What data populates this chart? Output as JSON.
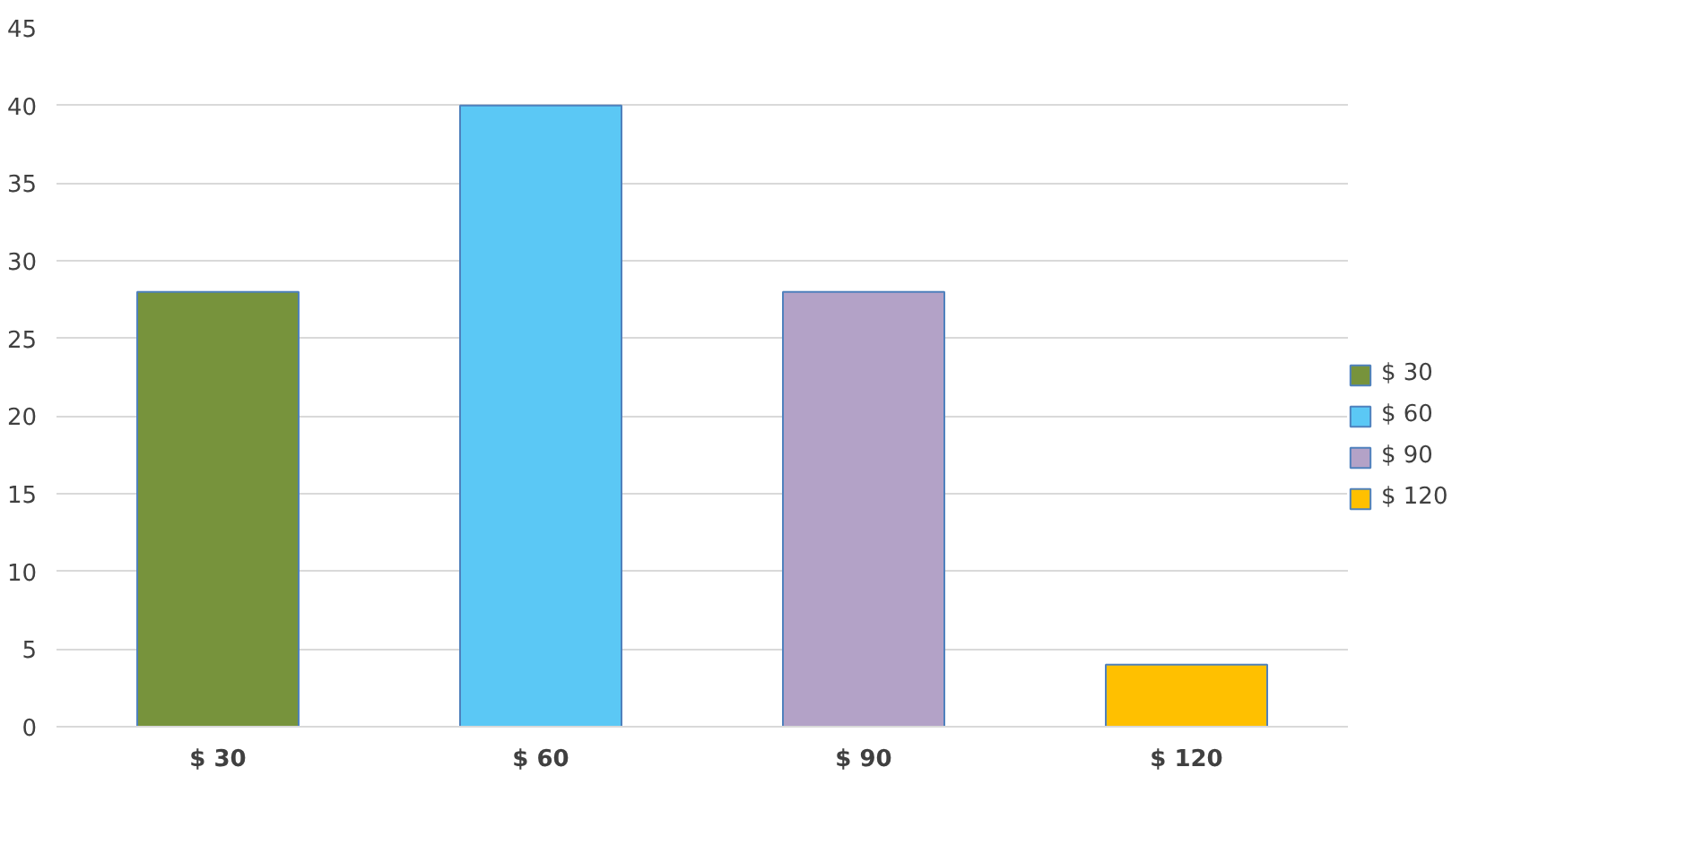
{
  "chart_data": {
    "type": "bar",
    "categories": [
      "$ 30",
      "$ 60",
      "$ 90",
      "$ 120"
    ],
    "series": [
      {
        "name": "$ 30",
        "color": "#77933c",
        "values": [
          28,
          null,
          null,
          null
        ]
      },
      {
        "name": "$ 60",
        "color": "#5bc8f5",
        "values": [
          null,
          40,
          null,
          null
        ]
      },
      {
        "name": "$ 90",
        "color": "#b3a2c7",
        "values": [
          null,
          null,
          28,
          null
        ]
      },
      {
        "name": "$ 120",
        "color": "#ffc000",
        "values": [
          null,
          null,
          null,
          4
        ]
      }
    ],
    "ylim": [
      0,
      45
    ],
    "yticks": [
      0,
      5,
      10,
      15,
      20,
      25,
      30,
      35,
      40,
      45
    ],
    "grid": "y",
    "legend": "right"
  }
}
